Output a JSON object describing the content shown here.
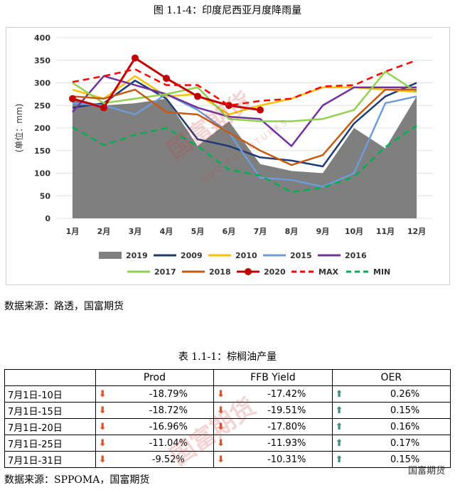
{
  "figure_title": "图 1.1-4：印度尼西亚月度降雨量",
  "source_1": "数据来源：路透，国富期货",
  "table_title": "表 1.1-1：棕榈油产量",
  "source_2": "数据来源：SPPOMA，国富期货",
  "brand": "国富期货",
  "watermark_cn": "国富期货",
  "watermark_en": "GUO FU FUTURES",
  "table": {
    "headers": [
      "",
      "Prod",
      "FFB Yield",
      "OER"
    ],
    "rows": [
      {
        "label": "7月1日-10日",
        "prod": "-18.79%",
        "ffb": "-17.42%",
        "oer": "0.26%"
      },
      {
        "label": "7月1日-15日",
        "prod": "-18.72%",
        "ffb": "-19.51%",
        "oer": "0.15%"
      },
      {
        "label": "7月1日-20日",
        "prod": "-16.96%",
        "ffb": "-17.80%",
        "oer": "0.16%"
      },
      {
        "label": "7月1日-25日",
        "prod": "-11.04%",
        "ffb": "-11.93%",
        "oer": "0.17%"
      },
      {
        "label": "7月1日-31日",
        "prod": "-9.52%",
        "ffb": "-10.31%",
        "oer": "0.15%"
      }
    ],
    "down_color": "#d9542a",
    "up_color": "#3e8e78"
  },
  "chart_data": {
    "type": "line",
    "ylabel": "(单位：mm)",
    "ylim": [
      0,
      400
    ],
    "yticks": [
      0,
      50,
      100,
      150,
      200,
      250,
      300,
      350,
      400
    ],
    "categories": [
      "1月",
      "2月",
      "3月",
      "4月",
      "5月",
      "6月",
      "7月",
      "8月",
      "9月",
      "10月",
      "11月",
      "12月"
    ],
    "series": [
      {
        "name": "2019",
        "kind": "area",
        "color": "#7f7f7f",
        "values": [
          265,
          250,
          255,
          265,
          160,
          215,
          120,
          105,
          100,
          200,
          155,
          270
        ]
      },
      {
        "name": "2009",
        "kind": "line",
        "color": "#1f3b73",
        "values": [
          245,
          255,
          305,
          265,
          175,
          160,
          135,
          128,
          115,
          210,
          270,
          300
        ]
      },
      {
        "name": "2010",
        "kind": "line",
        "color": "#ffc000",
        "values": [
          285,
          265,
          315,
          270,
          275,
          230,
          250,
          265,
          290,
          290,
          285,
          280
        ]
      },
      {
        "name": "2015",
        "kind": "line",
        "color": "#6f9bd8",
        "values": [
          255,
          250,
          230,
          275,
          240,
          190,
          90,
          85,
          70,
          100,
          255,
          270
        ]
      },
      {
        "name": "2016",
        "kind": "line",
        "color": "#7030a0",
        "values": [
          235,
          315,
          295,
          275,
          245,
          225,
          220,
          160,
          250,
          290,
          290,
          290
        ]
      },
      {
        "name": "2017",
        "kind": "line",
        "color": "#92d050",
        "values": [
          300,
          255,
          265,
          275,
          290,
          220,
          215,
          215,
          220,
          240,
          325,
          280
        ]
      },
      {
        "name": "2018",
        "kind": "line",
        "color": "#c55a11",
        "values": [
          270,
          265,
          285,
          235,
          230,
          190,
          150,
          118,
          140,
          220,
          285,
          285
        ]
      },
      {
        "name": "2020",
        "kind": "line-marker",
        "color": "#c00000",
        "values": [
          265,
          245,
          355,
          310,
          270,
          250,
          240,
          null,
          null,
          null,
          null,
          null
        ]
      },
      {
        "name": "MAX",
        "kind": "dash",
        "color": "#ff0000",
        "values": [
          302,
          315,
          330,
          295,
          295,
          250,
          260,
          265,
          292,
          295,
          325,
          350
        ]
      },
      {
        "name": "MIN",
        "kind": "dash",
        "color": "#00b050",
        "values": [
          202,
          162,
          185,
          200,
          160,
          108,
          95,
          58,
          68,
          92,
          158,
          205
        ]
      }
    ]
  }
}
